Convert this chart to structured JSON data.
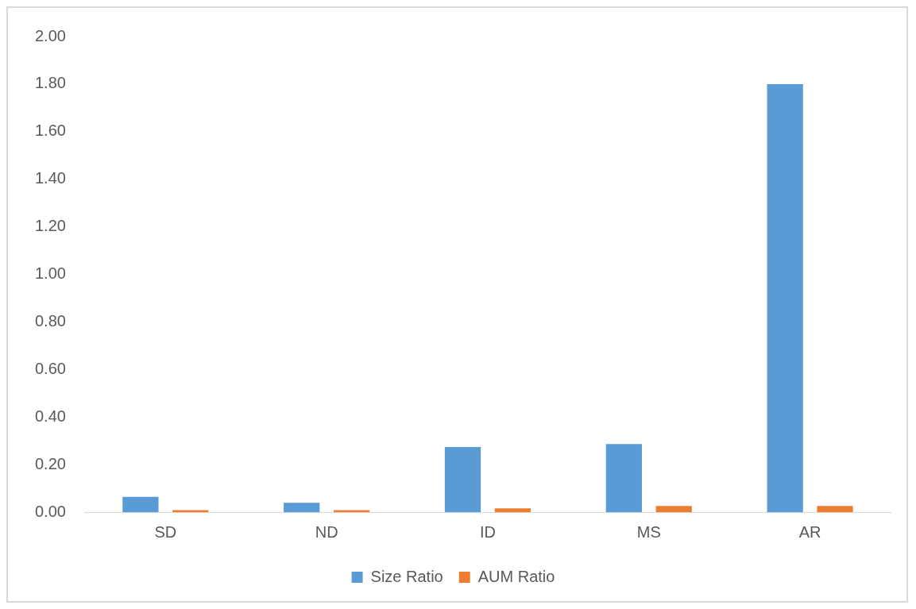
{
  "chart_data": {
    "type": "bar",
    "categories": [
      "SD",
      "ND",
      "ID",
      "MS",
      "AR"
    ],
    "series": [
      {
        "name": "Size Ratio",
        "color": "#5b9bd5",
        "values": [
          0.064,
          0.039,
          0.274,
          0.286,
          1.8
        ]
      },
      {
        "name": "AUM Ratio",
        "color": "#ed7d31",
        "values": [
          0.008,
          0.008,
          0.016,
          0.026,
          0.026
        ]
      }
    ],
    "ylim": [
      0,
      2
    ],
    "yticks": [
      {
        "value": 0,
        "label": "0.00"
      },
      {
        "value": 0.2,
        "label": "0.20"
      },
      {
        "value": 0.4,
        "label": "0.40"
      },
      {
        "value": 0.6,
        "label": "0.60"
      },
      {
        "value": 0.8,
        "label": "0.80"
      },
      {
        "value": 1,
        "label": "1.00"
      },
      {
        "value": 1.2,
        "label": "1.20"
      },
      {
        "value": 1.4,
        "label": "1.40"
      },
      {
        "value": 1.6,
        "label": "1.60"
      },
      {
        "value": 1.8,
        "label": "1.80"
      },
      {
        "value": 2,
        "label": "2.00"
      }
    ],
    "grid": false,
    "legend": "bottom"
  }
}
